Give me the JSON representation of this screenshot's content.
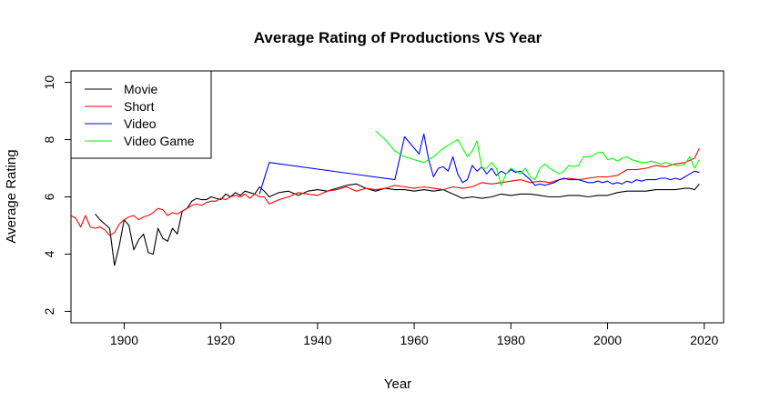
{
  "chart_data": {
    "type": "line",
    "title": "Average Rating of Productions VS Year",
    "xlabel": "Year",
    "ylabel": "Average Rating",
    "xlim": [
      1889,
      2024
    ],
    "ylim": [
      1.6,
      10.4
    ],
    "xticks": [
      1900,
      1920,
      1940,
      1960,
      1980,
      2000,
      2020
    ],
    "yticks": [
      2,
      4,
      6,
      8,
      10
    ],
    "grid": false,
    "legend_position": "top-left",
    "series": [
      {
        "name": "Movie",
        "color": "#000000",
        "x": [
          1894,
          1895,
          1896,
          1897,
          1898,
          1899,
          1900,
          1901,
          1902,
          1903,
          1904,
          1905,
          1906,
          1907,
          1908,
          1909,
          1910,
          1911,
          1912,
          1913,
          1914,
          1915,
          1916,
          1917,
          1918,
          1919,
          1920,
          1921,
          1922,
          1923,
          1924,
          1925,
          1926,
          1927,
          1928,
          1929,
          1930,
          1932,
          1934,
          1936,
          1938,
          1940,
          1942,
          1944,
          1946,
          1948,
          1950,
          1952,
          1954,
          1956,
          1958,
          1960,
          1962,
          1964,
          1966,
          1968,
          1970,
          1972,
          1974,
          1976,
          1978,
          1980,
          1982,
          1984,
          1986,
          1988,
          1990,
          1992,
          1994,
          1996,
          1998,
          2000,
          2002,
          2004,
          2006,
          2008,
          2010,
          2012,
          2014,
          2016,
          2017,
          2018,
          2019
        ],
        "y": [
          5.4,
          5.2,
          5.05,
          4.9,
          3.6,
          4.3,
          5.2,
          5.0,
          4.15,
          4.5,
          4.7,
          4.05,
          4.0,
          4.9,
          4.55,
          4.45,
          4.9,
          4.7,
          5.5,
          5.6,
          5.85,
          5.95,
          5.9,
          5.9,
          6.0,
          5.95,
          5.9,
          6.1,
          6.0,
          6.15,
          6.05,
          6.2,
          6.15,
          6.1,
          6.35,
          6.2,
          6.0,
          6.15,
          6.2,
          6.05,
          6.2,
          6.25,
          6.2,
          6.3,
          6.4,
          6.45,
          6.3,
          6.2,
          6.3,
          6.25,
          6.25,
          6.2,
          6.25,
          6.2,
          6.25,
          6.1,
          5.95,
          6.0,
          5.95,
          6.0,
          6.1,
          6.05,
          6.1,
          6.1,
          6.05,
          6.0,
          6.0,
          6.05,
          6.05,
          6.0,
          6.05,
          6.05,
          6.15,
          6.2,
          6.2,
          6.2,
          6.25,
          6.25,
          6.25,
          6.3,
          6.3,
          6.25,
          6.45
        ]
      },
      {
        "name": "Short",
        "color": "#ff0000",
        "x": [
          1889,
          1890,
          1891,
          1892,
          1893,
          1894,
          1895,
          1896,
          1897,
          1898,
          1899,
          1900,
          1901,
          1902,
          1903,
          1904,
          1905,
          1906,
          1907,
          1908,
          1909,
          1910,
          1911,
          1912,
          1913,
          1914,
          1915,
          1916,
          1917,
          1918,
          1919,
          1920,
          1921,
          1922,
          1923,
          1924,
          1925,
          1926,
          1927,
          1928,
          1929,
          1930,
          1932,
          1934,
          1936,
          1938,
          1940,
          1942,
          1944,
          1946,
          1948,
          1950,
          1952,
          1954,
          1956,
          1958,
          1960,
          1962,
          1964,
          1966,
          1968,
          1970,
          1972,
          1974,
          1976,
          1978,
          1980,
          1982,
          1984,
          1986,
          1988,
          1990,
          1992,
          1994,
          1996,
          1998,
          2000,
          2002,
          2004,
          2006,
          2008,
          2010,
          2012,
          2014,
          2016,
          2018,
          2019
        ],
        "y": [
          5.35,
          5.25,
          4.95,
          5.35,
          4.95,
          4.9,
          4.95,
          4.85,
          4.65,
          4.75,
          5.05,
          5.2,
          5.3,
          5.35,
          5.2,
          5.3,
          5.35,
          5.45,
          5.6,
          5.55,
          5.35,
          5.45,
          5.4,
          5.5,
          5.6,
          5.7,
          5.75,
          5.7,
          5.8,
          5.85,
          5.85,
          5.95,
          5.9,
          6.0,
          6.05,
          6.0,
          6.1,
          5.95,
          6.1,
          6.0,
          6.0,
          5.75,
          5.9,
          6.0,
          6.15,
          6.1,
          6.05,
          6.2,
          6.25,
          6.35,
          6.2,
          6.3,
          6.25,
          6.3,
          6.4,
          6.35,
          6.3,
          6.35,
          6.3,
          6.25,
          6.35,
          6.3,
          6.35,
          6.5,
          6.45,
          6.5,
          6.55,
          6.6,
          6.5,
          6.55,
          6.5,
          6.6,
          6.65,
          6.6,
          6.65,
          6.7,
          6.7,
          6.75,
          6.95,
          6.95,
          7.0,
          7.1,
          7.05,
          7.15,
          7.2,
          7.35,
          7.7
        ]
      },
      {
        "name": "Video",
        "color": "#0000ff",
        "x": [
          1928,
          1930,
          1956,
          1958,
          1960,
          1961,
          1962,
          1963,
          1964,
          1965,
          1966,
          1967,
          1968,
          1969,
          1970,
          1971,
          1972,
          1973,
          1974,
          1975,
          1976,
          1977,
          1978,
          1979,
          1980,
          1981,
          1982,
          1983,
          1984,
          1985,
          1986,
          1987,
          1988,
          1989,
          1990,
          1991,
          1992,
          1993,
          1994,
          1995,
          1996,
          1997,
          1998,
          1999,
          2000,
          2001,
          2002,
          2003,
          2004,
          2005,
          2006,
          2007,
          2008,
          2009,
          2010,
          2011,
          2012,
          2013,
          2014,
          2015,
          2016,
          2017,
          2018,
          2019
        ],
        "y": [
          6.1,
          7.2,
          6.6,
          8.1,
          7.7,
          7.5,
          8.2,
          7.3,
          6.7,
          7.0,
          7.05,
          6.9,
          7.4,
          6.8,
          6.5,
          6.6,
          7.1,
          6.9,
          7.05,
          6.8,
          7.0,
          6.75,
          6.9,
          6.8,
          6.95,
          6.85,
          6.9,
          6.75,
          6.6,
          6.4,
          6.45,
          6.4,
          6.45,
          6.5,
          6.6,
          6.65,
          6.6,
          6.6,
          6.6,
          6.55,
          6.5,
          6.5,
          6.55,
          6.5,
          6.55,
          6.45,
          6.5,
          6.45,
          6.55,
          6.5,
          6.6,
          6.55,
          6.6,
          6.6,
          6.6,
          6.65,
          6.65,
          6.6,
          6.65,
          6.6,
          6.7,
          6.8,
          6.9,
          6.85
        ]
      },
      {
        "name": "Video Game",
        "color": "#00ff00",
        "x": [
          1952,
          1954,
          1956,
          1958,
          1960,
          1962,
          1964,
          1966,
          1968,
          1969,
          1970,
          1971,
          1972,
          1973,
          1974,
          1975,
          1976,
          1977,
          1978,
          1979,
          1980,
          1981,
          1982,
          1983,
          1984,
          1985,
          1986,
          1987,
          1988,
          1989,
          1990,
          1991,
          1992,
          1993,
          1994,
          1995,
          1996,
          1997,
          1998,
          1999,
          2000,
          2001,
          2002,
          2003,
          2004,
          2005,
          2006,
          2007,
          2008,
          2009,
          2010,
          2011,
          2012,
          2013,
          2014,
          2015,
          2016,
          2017,
          2018,
          2019
        ],
        "y": [
          8.3,
          8.0,
          7.6,
          7.4,
          7.3,
          7.2,
          7.4,
          7.7,
          7.9,
          8.0,
          7.7,
          7.4,
          7.6,
          7.95,
          7.0,
          7.0,
          7.2,
          7.0,
          6.4,
          6.8,
          7.0,
          6.9,
          6.8,
          7.0,
          6.7,
          6.6,
          7.0,
          7.15,
          7.0,
          6.9,
          6.8,
          6.9,
          7.1,
          7.05,
          7.1,
          7.4,
          7.4,
          7.45,
          7.55,
          7.55,
          7.3,
          7.35,
          7.25,
          7.35,
          7.4,
          7.3,
          7.25,
          7.2,
          7.2,
          7.25,
          7.2,
          7.15,
          7.2,
          7.15,
          7.1,
          7.1,
          7.15,
          7.4,
          7.0,
          7.3
        ]
      }
    ]
  }
}
